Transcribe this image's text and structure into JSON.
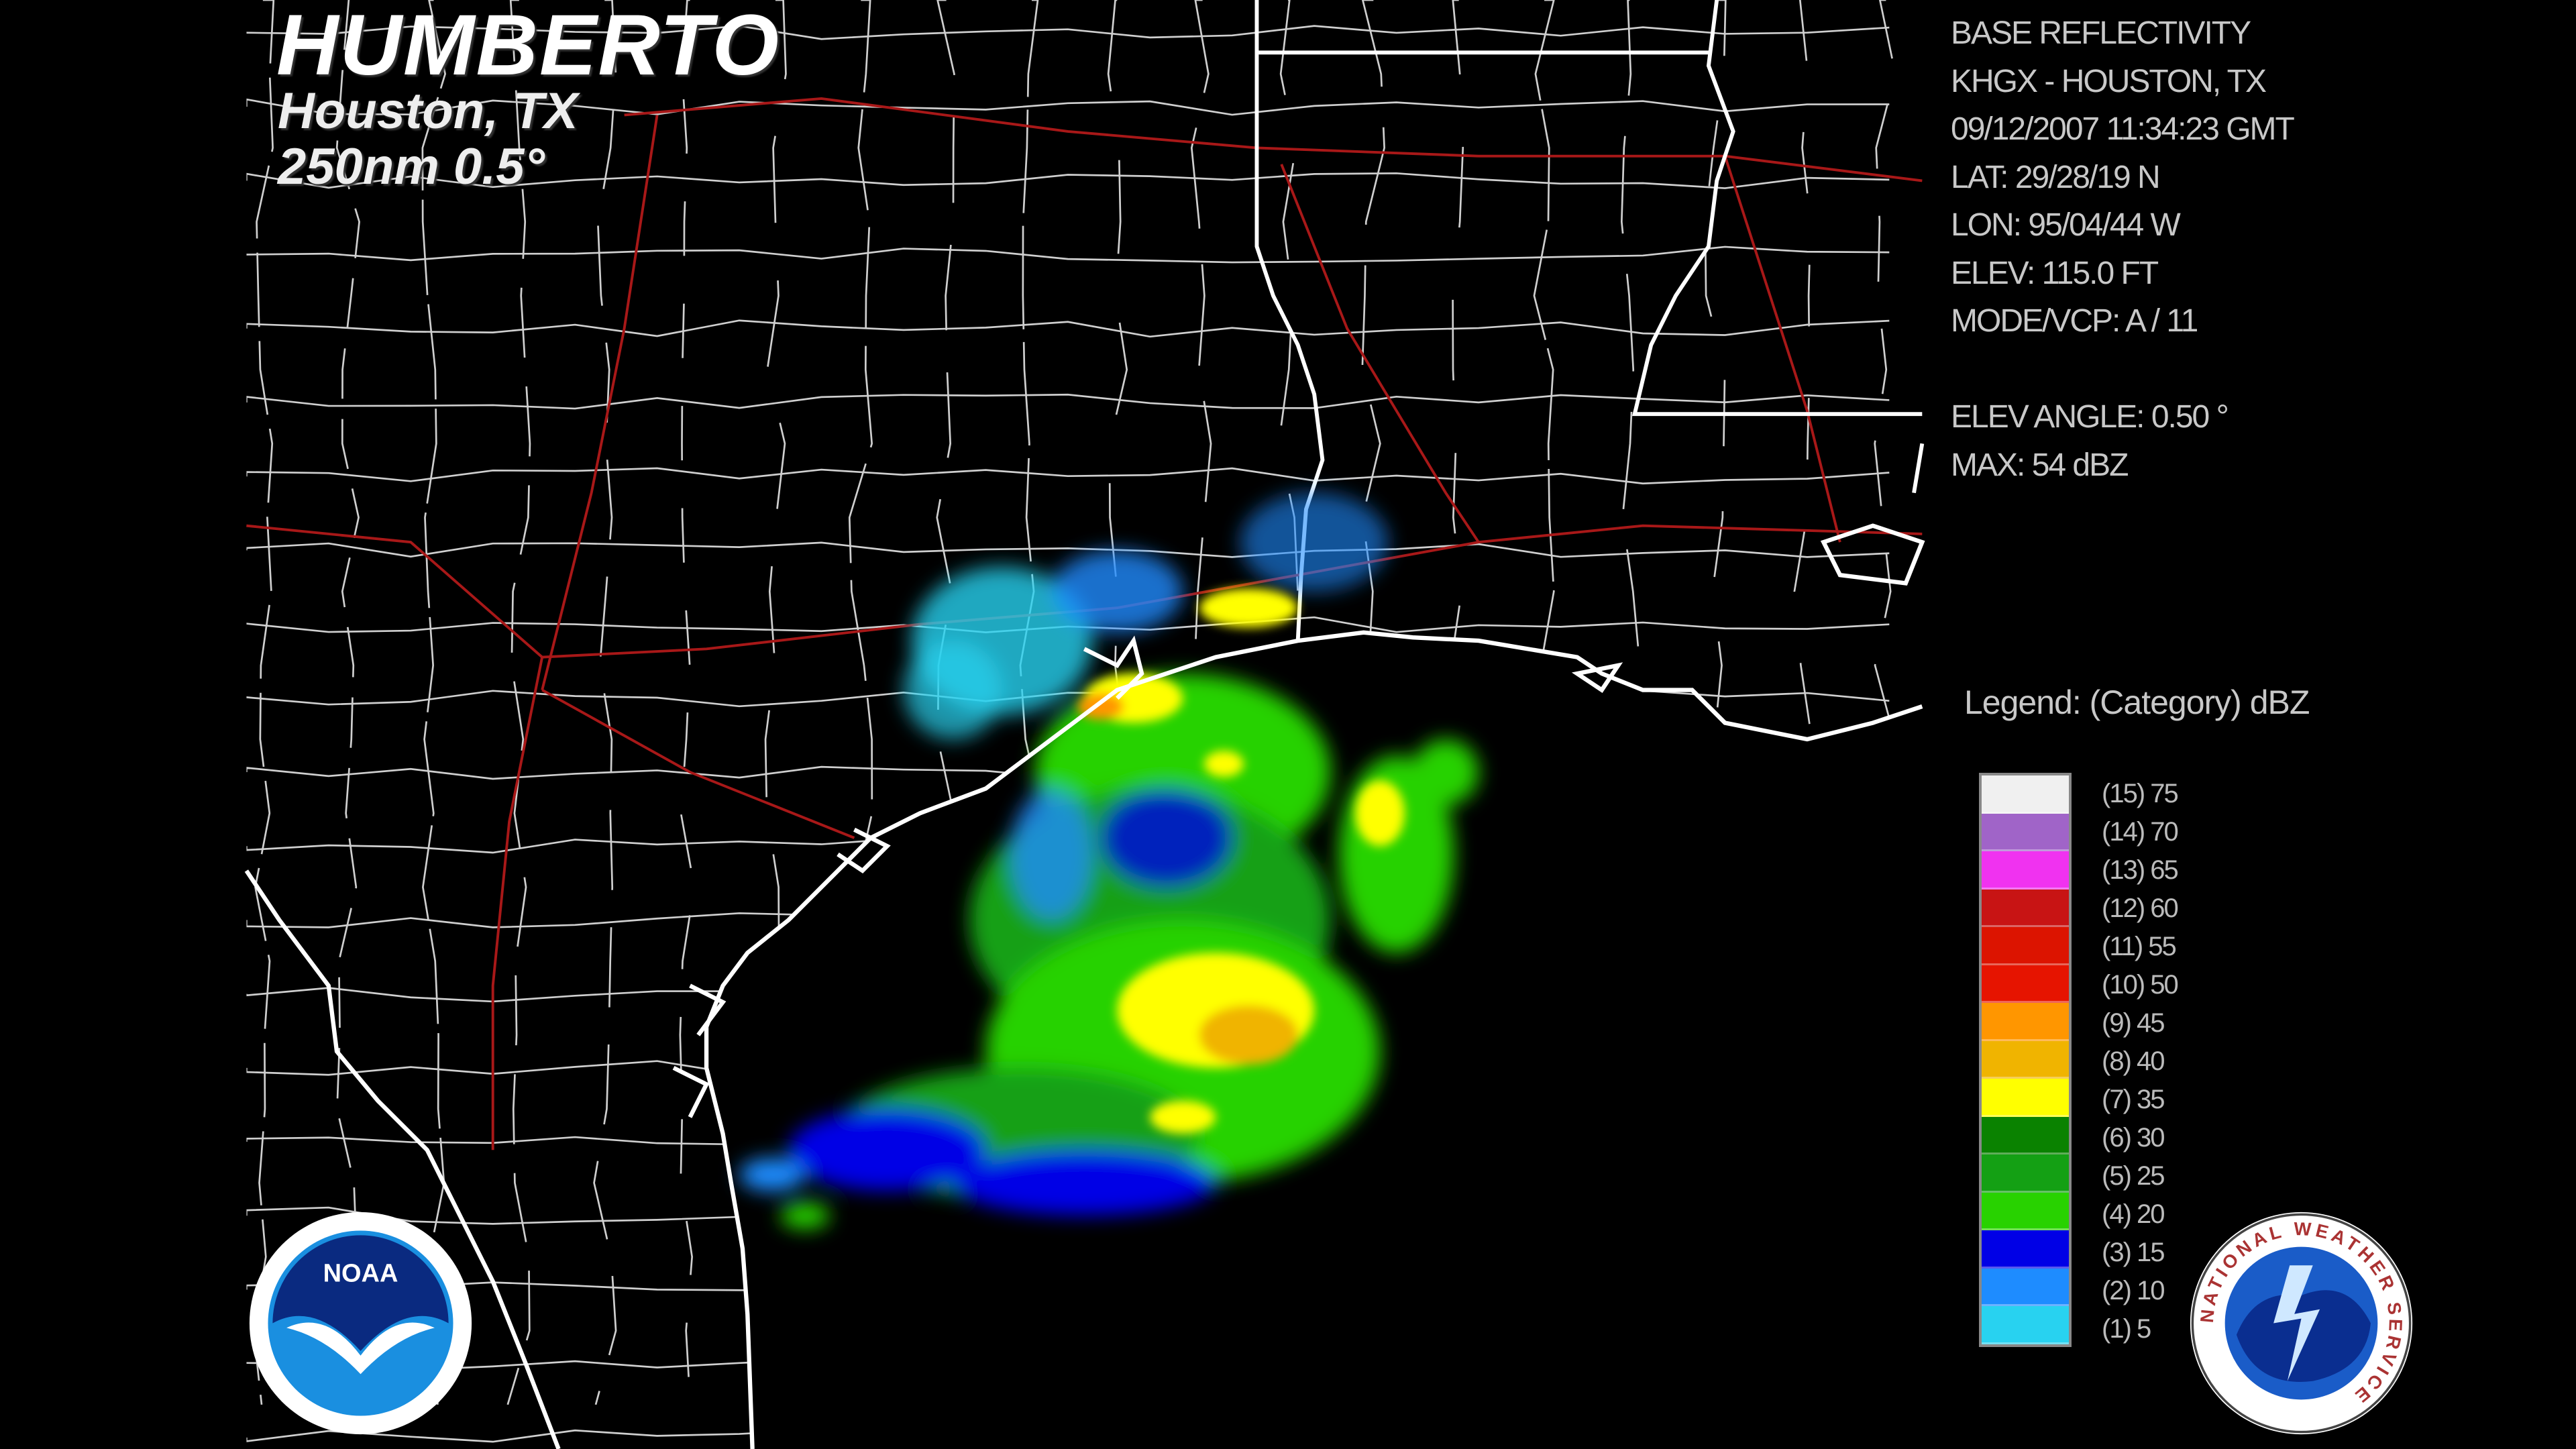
{
  "header": {
    "storm_name": "HUMBERTO",
    "location": "Houston, TX",
    "range_elevation": "250nm  0.5°"
  },
  "info": {
    "product": "BASE REFLECTIVITY",
    "station": "KHGX - HOUSTON, TX",
    "datetime": "09/12/2007 11:34:23 GMT",
    "lat": "LAT: 29/28/19 N",
    "lon": "LON: 95/04/44 W",
    "elev": "ELEV: 115.0 FT",
    "mode": "MODE/VCP: A / 11",
    "elev_angle": "ELEV ANGLE: 0.50 °",
    "max": "MAX: 54 dBZ"
  },
  "legend": {
    "title": "Legend: (Category) dBZ",
    "items": [
      {
        "label": "(15) 75",
        "color": "#f0f0f0"
      },
      {
        "label": "(14) 70",
        "color": "#a064c8"
      },
      {
        "label": "(13) 65",
        "color": "#f032f0"
      },
      {
        "label": "(12) 60",
        "color": "#c81414"
      },
      {
        "label": "(11) 55",
        "color": "#dc1400"
      },
      {
        "label": "(10) 50",
        "color": "#e61400"
      },
      {
        "label": "(9) 45",
        "color": "#ff9600"
      },
      {
        "label": "(8) 40",
        "color": "#f0b400"
      },
      {
        "label": "(7) 35",
        "color": "#ffff00"
      },
      {
        "label": "(6) 30",
        "color": "#0a8200"
      },
      {
        "label": "(5) 25",
        "color": "#14a014"
      },
      {
        "label": "(4) 20",
        "color": "#28d200"
      },
      {
        "label": "(3) 15",
        "color": "#0000e6"
      },
      {
        "label": "(2) 10",
        "color": "#1e8cff"
      },
      {
        "label": "(1) 5",
        "color": "#28d2f0"
      }
    ]
  },
  "logos": {
    "left": "NOAA",
    "right": "NATIONAL WEATHER SERVICE"
  },
  "colors": {
    "background": "#000000",
    "county_lines": "#d0d0d0",
    "highways": "#b01818",
    "coastline": "#ffffff"
  }
}
